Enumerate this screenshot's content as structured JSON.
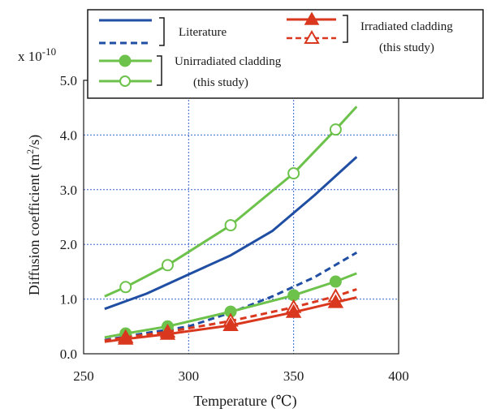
{
  "chart_data": {
    "type": "line",
    "xlabel": "Temperature (℃)",
    "ylabel": "Diffusion coefficient (m²/s)",
    "y_multiplier_label": "x 10",
    "y_multiplier_exponent": "-10",
    "xlim": [
      250,
      400
    ],
    "ylim": [
      0.0,
      5.0
    ],
    "x_ticks": [
      250,
      300,
      350,
      400
    ],
    "x_tick_labels": [
      "250",
      "300",
      "350",
      "400"
    ],
    "y_ticks": [
      0,
      1,
      2,
      3,
      4,
      5
    ],
    "y_tick_labels": [
      "0.0",
      "1.0",
      "2.0",
      "3.0",
      "4.0",
      "5.0"
    ],
    "grid": true,
    "legend_position": "top",
    "legend": {
      "literature_label": "Literature",
      "unirradiated_label_line1": "Unirradiated cladding",
      "unirradiated_label_line2": "(this study)",
      "irradiated_label_line1": "Irradiated cladding",
      "irradiated_label_line2": "(this study)"
    },
    "series": [
      {
        "group": "Literature",
        "style": "solid",
        "marker": "none",
        "color": "#1f4ea3",
        "x": [
          260,
          280,
          300,
          320,
          340,
          360,
          380
        ],
        "y": [
          0.82,
          1.1,
          1.45,
          1.8,
          2.25,
          2.9,
          3.6
        ]
      },
      {
        "group": "Literature",
        "style": "dashed",
        "marker": "none",
        "color": "#1f4ea3",
        "x": [
          260,
          280,
          300,
          320,
          340,
          360,
          380
        ],
        "y": [
          0.25,
          0.38,
          0.5,
          0.75,
          1.05,
          1.4,
          1.85
        ]
      },
      {
        "group": "Unirradiated cladding (this study)",
        "style": "solid",
        "marker": "circle-open",
        "color": "#6cc24a",
        "x": [
          260,
          270,
          290,
          320,
          350,
          370,
          380
        ],
        "y": [
          1.05,
          1.22,
          1.62,
          2.35,
          3.3,
          4.1,
          4.52
        ],
        "marker_x": [
          270,
          290,
          320,
          350,
          370
        ]
      },
      {
        "group": "Unirradiated cladding (this study)",
        "style": "solid",
        "marker": "circle-filled",
        "color": "#6cc24a",
        "x": [
          260,
          270,
          290,
          320,
          350,
          370,
          380
        ],
        "y": [
          0.3,
          0.37,
          0.5,
          0.77,
          1.07,
          1.32,
          1.47
        ],
        "marker_x": [
          270,
          290,
          320,
          350,
          370
        ]
      },
      {
        "group": "Irradiated cladding (this study)",
        "style": "dashed",
        "marker": "triangle-open",
        "color": "#d9381e",
        "x": [
          260,
          270,
          290,
          320,
          350,
          370,
          380
        ],
        "y": [
          0.24,
          0.3,
          0.4,
          0.6,
          0.85,
          1.05,
          1.18
        ],
        "marker_x": [
          270,
          290,
          320,
          350,
          370
        ]
      },
      {
        "group": "Irradiated cladding (this study)",
        "style": "solid",
        "marker": "triangle-filled",
        "color": "#d9381e",
        "x": [
          260,
          270,
          290,
          320,
          350,
          370,
          380
        ],
        "y": [
          0.22,
          0.27,
          0.36,
          0.52,
          0.76,
          0.94,
          1.03
        ],
        "marker_x": [
          270,
          290,
          320,
          350,
          370
        ]
      }
    ]
  }
}
